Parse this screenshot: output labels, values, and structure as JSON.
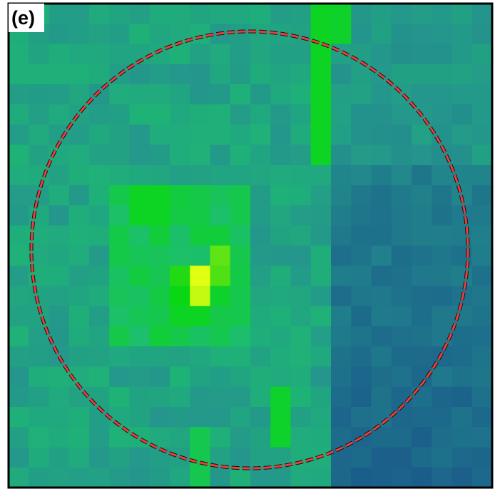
{
  "panel": {
    "label": "(e)"
  }
}
